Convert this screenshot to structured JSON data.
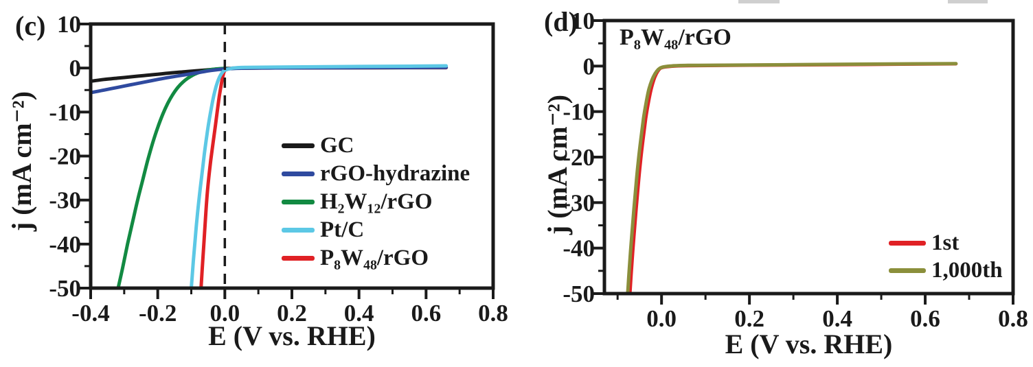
{
  "chart_data": [
    {
      "type": "line",
      "panel_label": "(c)",
      "title": "",
      "xlabel": "E (V vs. RHE)",
      "ylabel": "j (mA cm⁻²)",
      "xlim": [
        -0.4,
        0.8
      ],
      "ylim": [
        -50,
        10
      ],
      "x_ticks": [
        -0.4,
        -0.2,
        0.0,
        0.2,
        0.4,
        0.6,
        0.8
      ],
      "x_tick_labels": [
        "-0.4",
        "-0.2",
        "0.0",
        "0.2",
        "0.4",
        "0.6",
        "0.8"
      ],
      "x_minor_step": 0.1,
      "y_ticks": [
        10,
        0,
        -10,
        -20,
        -30,
        -40,
        -50
      ],
      "y_tick_labels": [
        "10",
        "0",
        "-10",
        "-20",
        "-30",
        "-40",
        "-50"
      ],
      "y_minor_step": 5,
      "grid": false,
      "legend_position": "center-right",
      "reference_line": {
        "x": 0.0,
        "style": "dashed",
        "color": "#1a1a1a"
      },
      "legend": [
        {
          "label": "GC",
          "color": "#1a1a1a"
        },
        {
          "label": "rGO-hydrazine",
          "color": "#2f4a9f"
        },
        {
          "label": "H₂W₁₂/rGO",
          "color": "#128a42"
        },
        {
          "label": "Pt/C",
          "color": "#5cc8e5"
        },
        {
          "label": "P₈W₄₈/rGO",
          "color": "#e02125"
        }
      ],
      "series": [
        {
          "name": "GC",
          "color": "#1a1a1a",
          "points": [
            [
              -0.4,
              -3.0
            ],
            [
              -0.36,
              -2.6
            ],
            [
              -0.32,
              -2.3
            ],
            [
              -0.28,
              -2.0
            ],
            [
              -0.24,
              -1.7
            ],
            [
              -0.2,
              -1.4
            ],
            [
              -0.16,
              -1.1
            ],
            [
              -0.12,
              -0.85
            ],
            [
              -0.08,
              -0.6
            ],
            [
              -0.04,
              -0.35
            ],
            [
              0.0,
              -0.15
            ],
            [
              0.05,
              -0.02
            ],
            [
              0.15,
              0.05
            ],
            [
              0.3,
              0.08
            ],
            [
              0.5,
              0.1
            ],
            [
              0.66,
              0.12
            ]
          ]
        },
        {
          "name": "H₂W₁₂/rGO",
          "color": "#128a42",
          "points": [
            [
              -0.318,
              -50
            ],
            [
              -0.305,
              -45.5
            ],
            [
              -0.29,
              -40
            ],
            [
              -0.275,
              -35
            ],
            [
              -0.26,
              -30
            ],
            [
              -0.245,
              -25.5
            ],
            [
              -0.23,
              -21
            ],
            [
              -0.215,
              -17
            ],
            [
              -0.2,
              -13.5
            ],
            [
              -0.185,
              -10.5
            ],
            [
              -0.17,
              -8
            ],
            [
              -0.155,
              -6
            ],
            [
              -0.14,
              -4.4
            ],
            [
              -0.125,
              -3.2
            ],
            [
              -0.11,
              -2.3
            ],
            [
              -0.09,
              -1.4
            ],
            [
              -0.07,
              -0.85
            ],
            [
              -0.05,
              -0.5
            ],
            [
              -0.03,
              -0.25
            ],
            [
              0.0,
              -0.08
            ],
            [
              0.1,
              0.02
            ],
            [
              0.3,
              0.05
            ],
            [
              0.5,
              0.07
            ],
            [
              0.66,
              0.09
            ]
          ]
        },
        {
          "name": "P₈W₄₈/rGO",
          "color": "#e02125",
          "points": [
            [
              -0.071,
              -50
            ],
            [
              -0.066,
              -44
            ],
            [
              -0.06,
              -37
            ],
            [
              -0.054,
              -30
            ],
            [
              -0.048,
              -25
            ],
            [
              -0.042,
              -21
            ],
            [
              -0.035,
              -17
            ],
            [
              -0.028,
              -13
            ],
            [
              -0.022,
              -9.5
            ],
            [
              -0.016,
              -6.2
            ],
            [
              -0.01,
              -3.5
            ],
            [
              -0.005,
              -1.6
            ],
            [
              0.0,
              -0.6
            ],
            [
              0.012,
              -0.1
            ],
            [
              0.05,
              0.0
            ],
            [
              0.2,
              0.04
            ],
            [
              0.45,
              0.07
            ],
            [
              0.66,
              0.09
            ]
          ]
        },
        {
          "name": "rGO-hydrazine",
          "color": "#2f4a9f",
          "points": [
            [
              -0.4,
              -5.6
            ],
            [
              -0.36,
              -5.0
            ],
            [
              -0.32,
              -4.4
            ],
            [
              -0.28,
              -3.8
            ],
            [
              -0.24,
              -3.2
            ],
            [
              -0.2,
              -2.6
            ],
            [
              -0.16,
              -2.05
            ],
            [
              -0.12,
              -1.55
            ],
            [
              -0.08,
              -1.05
            ],
            [
              -0.04,
              -0.55
            ],
            [
              0.0,
              -0.22
            ],
            [
              0.05,
              -0.05
            ],
            [
              0.15,
              0.02
            ],
            [
              0.3,
              0.06
            ],
            [
              0.5,
              0.1
            ],
            [
              0.66,
              0.12
            ]
          ]
        },
        {
          "name": "Pt/C",
          "color": "#5cc8e5",
          "points": [
            [
              -0.1,
              -50
            ],
            [
              -0.094,
              -44
            ],
            [
              -0.088,
              -38.5
            ],
            [
              -0.082,
              -33.5
            ],
            [
              -0.075,
              -28.5
            ],
            [
              -0.068,
              -24
            ],
            [
              -0.061,
              -19.5
            ],
            [
              -0.054,
              -15.5
            ],
            [
              -0.047,
              -12
            ],
            [
              -0.04,
              -9
            ],
            [
              -0.033,
              -6.3
            ],
            [
              -0.026,
              -4.2
            ],
            [
              -0.019,
              -2.6
            ],
            [
              -0.012,
              -1.5
            ],
            [
              -0.005,
              -0.8
            ],
            [
              0.0,
              -0.5
            ],
            [
              0.02,
              -0.05
            ],
            [
              0.06,
              0.15
            ],
            [
              0.2,
              0.25
            ],
            [
              0.4,
              0.35
            ],
            [
              0.55,
              0.42
            ],
            [
              0.66,
              0.5
            ]
          ]
        }
      ]
    },
    {
      "type": "line",
      "panel_label": "(d)",
      "title": "P₈W₄₈/rGO",
      "xlabel": "E (V vs. RHE)",
      "ylabel": "j (mA cm⁻²)",
      "xlim": [
        -0.13,
        0.8
      ],
      "ylim": [
        -50,
        10
      ],
      "x_ticks": [
        0.0,
        0.2,
        0.4,
        0.6,
        0.8
      ],
      "x_tick_labels": [
        "0.0",
        "0.2",
        "0.4",
        "0.6",
        "0.8"
      ],
      "x_minor_step": 0.1,
      "y_ticks": [
        10,
        0,
        -10,
        -20,
        -30,
        -40,
        -50
      ],
      "y_tick_labels": [
        "10",
        "0",
        "-10",
        "-20",
        "-30",
        "-40",
        "-50"
      ],
      "y_minor_step": 5,
      "grid": false,
      "legend_position": "center-right",
      "legend": [
        {
          "label": "1st",
          "color": "#e02125"
        },
        {
          "label": "1,000th",
          "color": "#8b8f3b"
        }
      ],
      "series": [
        {
          "name": "1st",
          "color": "#e02125",
          "points": [
            [
              -0.072,
              -50
            ],
            [
              -0.068,
              -44
            ],
            [
              -0.063,
              -37.5
            ],
            [
              -0.058,
              -31.5
            ],
            [
              -0.053,
              -26
            ],
            [
              -0.048,
              -21
            ],
            [
              -0.042,
              -16
            ],
            [
              -0.036,
              -11.5
            ],
            [
              -0.03,
              -8
            ],
            [
              -0.024,
              -5.2
            ],
            [
              -0.018,
              -3.1
            ],
            [
              -0.012,
              -1.7
            ],
            [
              -0.006,
              -0.8
            ],
            [
              0.0,
              -0.35
            ],
            [
              0.02,
              -0.05
            ],
            [
              0.06,
              0.1
            ],
            [
              0.2,
              0.2
            ],
            [
              0.4,
              0.32
            ],
            [
              0.55,
              0.42
            ],
            [
              0.67,
              0.5
            ]
          ]
        },
        {
          "name": "1,000th",
          "color": "#8b8f3b",
          "points": [
            [
              -0.077,
              -50
            ],
            [
              -0.073,
              -44
            ],
            [
              -0.068,
              -37.5
            ],
            [
              -0.063,
              -31.5
            ],
            [
              -0.058,
              -26
            ],
            [
              -0.053,
              -21
            ],
            [
              -0.047,
              -16
            ],
            [
              -0.041,
              -11.5
            ],
            [
              -0.035,
              -8
            ],
            [
              -0.029,
              -5.2
            ],
            [
              -0.022,
              -3.1
            ],
            [
              -0.015,
              -1.7
            ],
            [
              -0.008,
              -0.8
            ],
            [
              0.0,
              -0.3
            ],
            [
              0.02,
              0.0
            ],
            [
              0.06,
              0.15
            ],
            [
              0.2,
              0.25
            ],
            [
              0.4,
              0.38
            ],
            [
              0.55,
              0.48
            ],
            [
              0.67,
              0.55
            ]
          ]
        }
      ]
    }
  ]
}
